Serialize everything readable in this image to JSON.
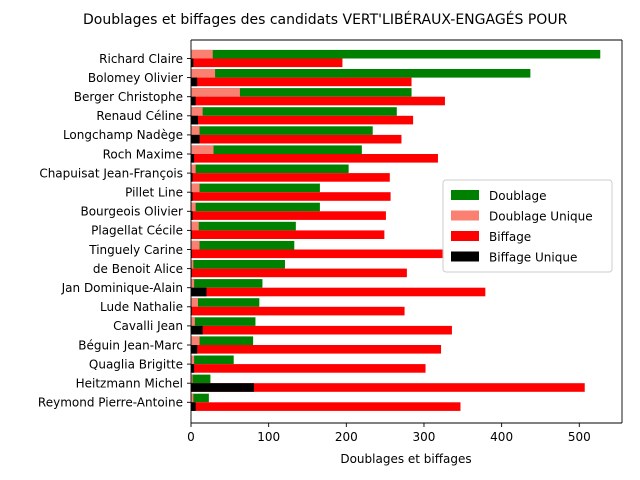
{
  "chart_data": {
    "type": "bar",
    "orientation": "horizontal",
    "title": "Doublages et biffages des candidats VERT'LIBÉRAUX-ENGAGÉS POUR",
    "xlabel": "Doublages et biffages",
    "ylabel": "",
    "xlim": [
      0,
      555
    ],
    "xticks": [
      0,
      100,
      200,
      300,
      400,
      500
    ],
    "grid": false,
    "legend_position": "center-right",
    "categories": [
      "Richard Claire",
      "Bolomey Olivier",
      "Berger Christophe",
      "Renaud Céline",
      "Longchamp Nadège",
      "Roch Maxime",
      "Chapuisat Jean-François",
      "Pillet Line",
      "Bourgeois Olivier",
      "Plagellat Cécile",
      "Tinguely Carine",
      "de Benoit Alice",
      "Jan Dominique-Alain",
      "Lude Nathalie",
      "Cavalli Jean",
      "Béguin Jean-Marc",
      "Quaglia Brigitte",
      "Heitzmann Michel",
      "Reymond Pierre-Antoine"
    ],
    "series": [
      {
        "name": "Doublage",
        "color": "#008000",
        "values": [
          527,
          437,
          284,
          265,
          234,
          220,
          203,
          166,
          166,
          135,
          133,
          121,
          92,
          88,
          83,
          80,
          55,
          25,
          23
        ]
      },
      {
        "name": "Doublage Unique",
        "color": "#fa8072",
        "values": [
          28,
          31,
          63,
          15,
          11,
          29,
          6,
          11,
          6,
          10,
          11,
          3,
          4,
          9,
          5,
          11,
          4,
          2,
          3
        ]
      },
      {
        "name": "Biffage",
        "color": "#ff0000",
        "values": [
          195,
          284,
          327,
          286,
          271,
          318,
          256,
          257,
          251,
          249,
          326,
          278,
          379,
          275,
          336,
          322,
          302,
          507,
          347
        ]
      },
      {
        "name": "Biffage Unique",
        "color": "#000000",
        "values": [
          3,
          8,
          6,
          9,
          11,
          4,
          2,
          2,
          2,
          1,
          1,
          1,
          20,
          1,
          15,
          8,
          4,
          81,
          6
        ]
      }
    ]
  }
}
